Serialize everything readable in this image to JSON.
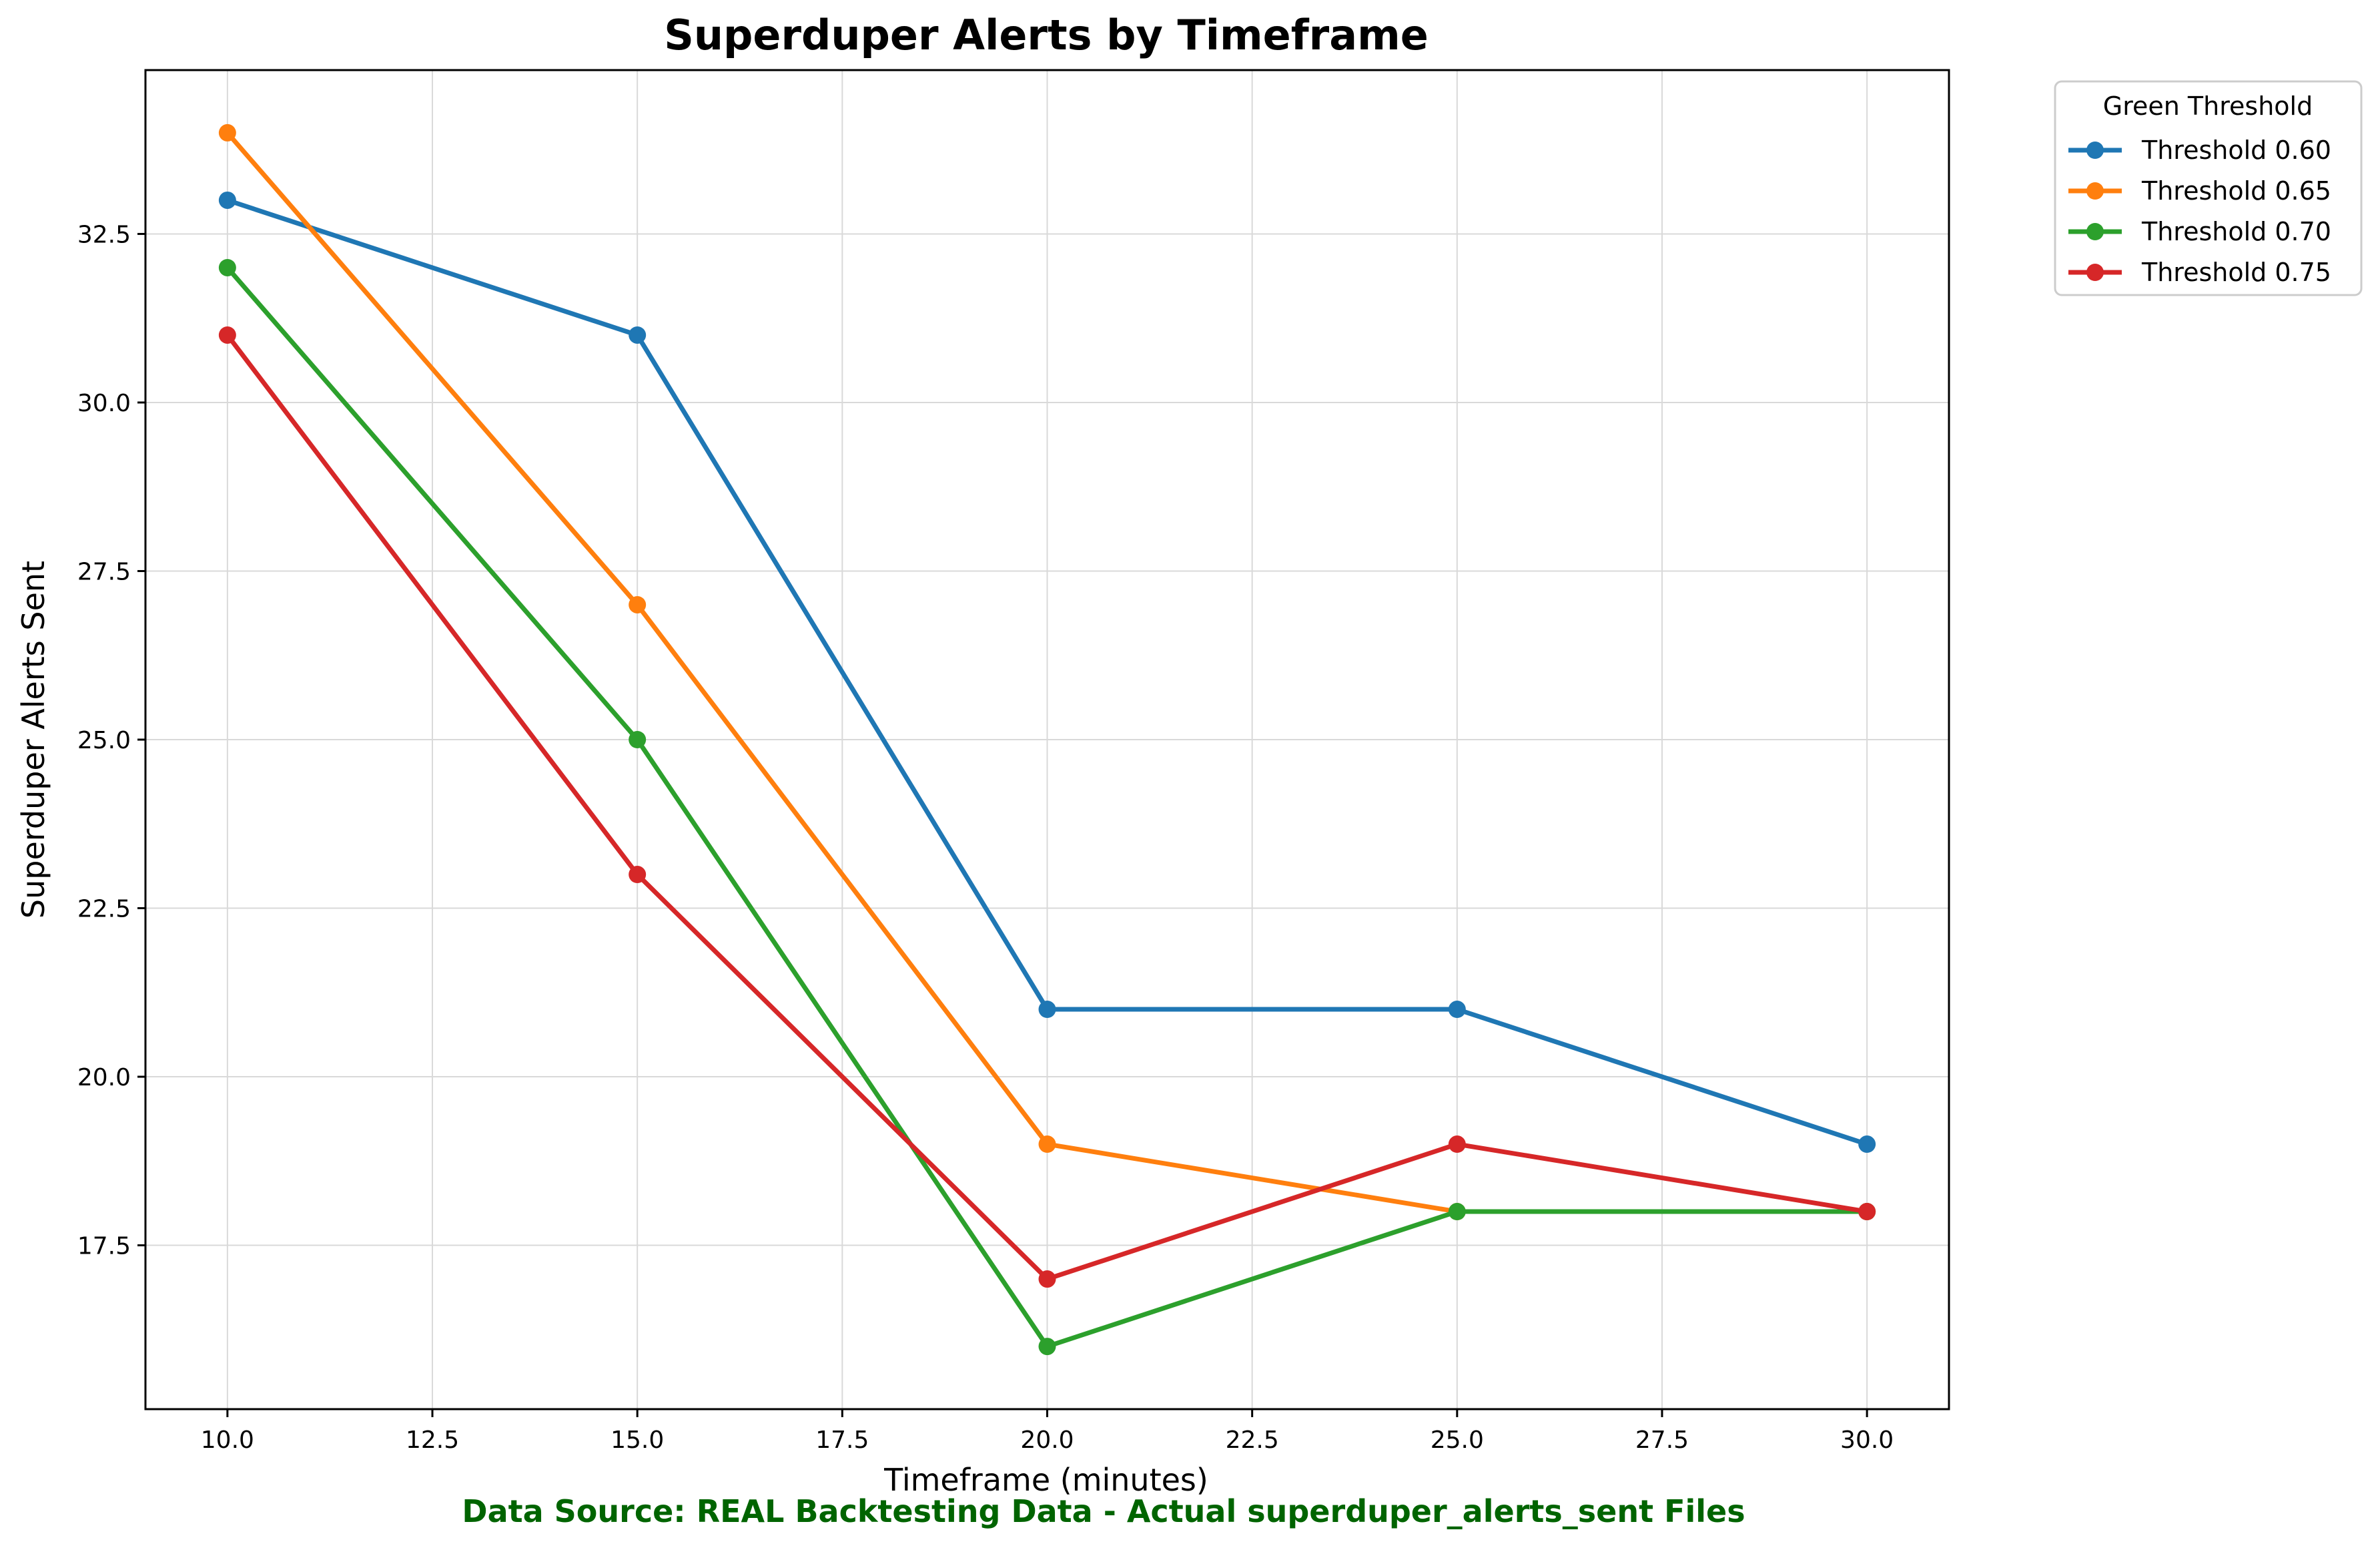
{
  "chart_data": {
    "type": "line",
    "title": "Superduper Alerts by Timeframe",
    "xlabel": "Timeframe (minutes)",
    "ylabel": "Superduper Alerts Sent",
    "footnote": "Data Source: REAL Backtesting Data - Actual superduper_alerts_sent Files",
    "x": [
      10,
      15,
      20,
      25,
      30
    ],
    "xlim": [
      9,
      31
    ],
    "ylim": [
      15.07,
      34.93
    ],
    "xticks": [
      "10.0",
      "12.5",
      "15.0",
      "17.5",
      "20.0",
      "22.5",
      "25.0",
      "27.5",
      "30.0"
    ],
    "yticks": [
      "17.5",
      "20.0",
      "22.5",
      "25.0",
      "27.5",
      "30.0",
      "32.5"
    ],
    "grid": true,
    "legend": {
      "title": "Green Threshold",
      "placement": "outside top-right"
    },
    "series": [
      {
        "name": "Threshold 0.60",
        "color": "#1f77b4",
        "values": [
          33,
          31,
          21,
          21,
          19
        ]
      },
      {
        "name": "Threshold 0.65",
        "color": "#ff7f0e",
        "values": [
          34,
          27,
          19,
          18,
          18
        ]
      },
      {
        "name": "Threshold 0.70",
        "color": "#2ca02c",
        "values": [
          32,
          25,
          16,
          18,
          18
        ]
      },
      {
        "name": "Threshold 0.75",
        "color": "#d62728",
        "values": [
          31,
          23,
          17,
          19,
          18
        ]
      }
    ],
    "colors": {
      "footnote": "#006400",
      "grid": "#d9d9d9",
      "axes": "#000000"
    }
  }
}
